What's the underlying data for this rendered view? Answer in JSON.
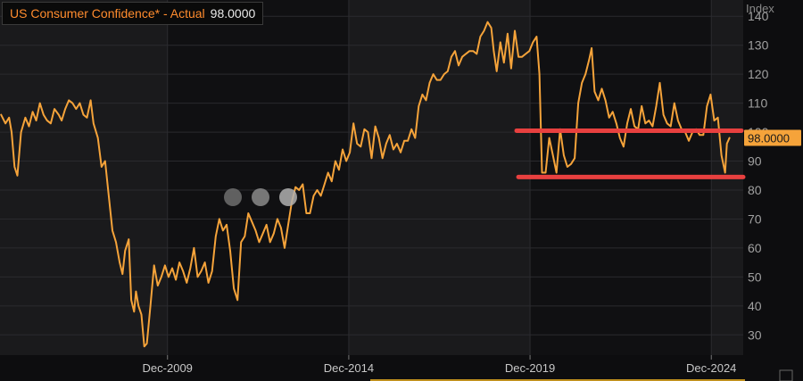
{
  "header": {
    "title": "US Consumer Confidence* - Actual",
    "value": "98.0000"
  },
  "y_axis_label": "Index",
  "colors": {
    "line": "#f5a33a",
    "annotation": "#e8403f",
    "badge": "#f5a33a",
    "shade": "#1a1a1c",
    "unshade": "#101012",
    "grid": "#2a2a2e"
  },
  "chart_data": {
    "type": "line",
    "title": "US Consumer Confidence* - Actual",
    "ylabel": "Index",
    "ylim": [
      23,
      145
    ],
    "yticks": [
      30,
      40,
      50,
      60,
      70,
      80,
      90,
      100,
      110,
      120,
      130,
      140
    ],
    "xlim": [
      2005.3,
      2025.8
    ],
    "xticks": [
      {
        "label": "Dec-2009",
        "x": 2009.92
      },
      {
        "label": "Dec-2014",
        "x": 2014.92
      },
      {
        "label": "Dec-2019",
        "x": 2019.92
      },
      {
        "label": "Dec-2024",
        "x": 2024.92
      }
    ],
    "last_value_label": "98.0000",
    "last_value": 98,
    "series": [
      {
        "points": [
          [
            2005.33,
            106
          ],
          [
            2005.45,
            103
          ],
          [
            2005.55,
            105
          ],
          [
            2005.62,
            100
          ],
          [
            2005.7,
            88
          ],
          [
            2005.78,
            85
          ],
          [
            2005.88,
            100
          ],
          [
            2006.0,
            105
          ],
          [
            2006.1,
            102
          ],
          [
            2006.2,
            107
          ],
          [
            2006.3,
            104
          ],
          [
            2006.4,
            110
          ],
          [
            2006.5,
            106
          ],
          [
            2006.6,
            104
          ],
          [
            2006.7,
            103
          ],
          [
            2006.8,
            108
          ],
          [
            2006.92,
            106
          ],
          [
            2007.0,
            104
          ],
          [
            2007.1,
            108
          ],
          [
            2007.2,
            111
          ],
          [
            2007.3,
            110
          ],
          [
            2007.4,
            108
          ],
          [
            2007.5,
            110
          ],
          [
            2007.6,
            106
          ],
          [
            2007.7,
            105
          ],
          [
            2007.8,
            111
          ],
          [
            2007.88,
            103
          ],
          [
            2008.0,
            98
          ],
          [
            2008.1,
            88
          ],
          [
            2008.2,
            90
          ],
          [
            2008.3,
            78
          ],
          [
            2008.4,
            66
          ],
          [
            2008.5,
            62
          ],
          [
            2008.6,
            55
          ],
          [
            2008.68,
            51
          ],
          [
            2008.75,
            59
          ],
          [
            2008.85,
            63
          ],
          [
            2008.92,
            42
          ],
          [
            2009.0,
            38
          ],
          [
            2009.05,
            45
          ],
          [
            2009.12,
            40
          ],
          [
            2009.2,
            37
          ],
          [
            2009.28,
            26
          ],
          [
            2009.35,
            27
          ],
          [
            2009.45,
            40
          ],
          [
            2009.55,
            54
          ],
          [
            2009.65,
            47
          ],
          [
            2009.75,
            50
          ],
          [
            2009.85,
            54
          ],
          [
            2009.95,
            50
          ],
          [
            2010.05,
            53
          ],
          [
            2010.15,
            49
          ],
          [
            2010.25,
            55
          ],
          [
            2010.35,
            52
          ],
          [
            2010.45,
            48
          ],
          [
            2010.55,
            53
          ],
          [
            2010.65,
            60
          ],
          [
            2010.75,
            50
          ],
          [
            2010.85,
            52
          ],
          [
            2010.95,
            55
          ],
          [
            2011.05,
            48
          ],
          [
            2011.15,
            52
          ],
          [
            2011.25,
            64
          ],
          [
            2011.35,
            70
          ],
          [
            2011.45,
            66
          ],
          [
            2011.55,
            68
          ],
          [
            2011.65,
            59
          ],
          [
            2011.75,
            46
          ],
          [
            2011.85,
            42
          ],
          [
            2011.95,
            62
          ],
          [
            2012.05,
            64
          ],
          [
            2012.15,
            72
          ],
          [
            2012.25,
            69
          ],
          [
            2012.35,
            66
          ],
          [
            2012.45,
            62
          ],
          [
            2012.55,
            65
          ],
          [
            2012.65,
            68
          ],
          [
            2012.75,
            62
          ],
          [
            2012.85,
            65
          ],
          [
            2012.95,
            70
          ],
          [
            2013.05,
            67
          ],
          [
            2013.15,
            60
          ],
          [
            2013.25,
            68
          ],
          [
            2013.35,
            76
          ],
          [
            2013.45,
            81
          ],
          [
            2013.55,
            80
          ],
          [
            2013.65,
            82
          ],
          [
            2013.75,
            72
          ],
          [
            2013.85,
            72
          ],
          [
            2013.95,
            78
          ],
          [
            2014.05,
            80
          ],
          [
            2014.15,
            78
          ],
          [
            2014.25,
            82
          ],
          [
            2014.35,
            86
          ],
          [
            2014.45,
            83
          ],
          [
            2014.55,
            90
          ],
          [
            2014.65,
            87
          ],
          [
            2014.75,
            94
          ],
          [
            2014.85,
            90
          ],
          [
            2014.95,
            93
          ],
          [
            2015.05,
            103
          ],
          [
            2015.15,
            96
          ],
          [
            2015.25,
            95
          ],
          [
            2015.35,
            101
          ],
          [
            2015.45,
            100
          ],
          [
            2015.55,
            91
          ],
          [
            2015.65,
            102
          ],
          [
            2015.75,
            98
          ],
          [
            2015.85,
            91
          ],
          [
            2015.95,
            96
          ],
          [
            2016.05,
            99
          ],
          [
            2016.15,
            94
          ],
          [
            2016.25,
            96
          ],
          [
            2016.35,
            93
          ],
          [
            2016.45,
            97
          ],
          [
            2016.55,
            97
          ],
          [
            2016.65,
            101
          ],
          [
            2016.75,
            98
          ],
          [
            2016.85,
            109
          ],
          [
            2016.95,
            113
          ],
          [
            2017.05,
            111
          ],
          [
            2017.15,
            117
          ],
          [
            2017.25,
            120
          ],
          [
            2017.35,
            118
          ],
          [
            2017.45,
            118
          ],
          [
            2017.55,
            120
          ],
          [
            2017.65,
            121
          ],
          [
            2017.75,
            126
          ],
          [
            2017.85,
            128
          ],
          [
            2017.95,
            123
          ],
          [
            2018.05,
            126
          ],
          [
            2018.15,
            127
          ],
          [
            2018.25,
            128
          ],
          [
            2018.35,
            128
          ],
          [
            2018.45,
            127
          ],
          [
            2018.55,
            133
          ],
          [
            2018.65,
            135
          ],
          [
            2018.75,
            138
          ],
          [
            2018.85,
            136
          ],
          [
            2018.92,
            128
          ],
          [
            2019.0,
            121
          ],
          [
            2019.1,
            131
          ],
          [
            2019.2,
            124
          ],
          [
            2019.3,
            134
          ],
          [
            2019.4,
            122
          ],
          [
            2019.5,
            135
          ],
          [
            2019.6,
            126
          ],
          [
            2019.7,
            126
          ],
          [
            2019.8,
            127
          ],
          [
            2019.9,
            128
          ],
          [
            2020.0,
            131
          ],
          [
            2020.1,
            133
          ],
          [
            2020.18,
            120
          ],
          [
            2020.25,
            86
          ],
          [
            2020.35,
            86
          ],
          [
            2020.45,
            98
          ],
          [
            2020.55,
            92
          ],
          [
            2020.65,
            86
          ],
          [
            2020.75,
            101
          ],
          [
            2020.85,
            92
          ],
          [
            2020.95,
            88
          ],
          [
            2021.05,
            89
          ],
          [
            2021.15,
            91
          ],
          [
            2021.25,
            110
          ],
          [
            2021.35,
            117
          ],
          [
            2021.45,
            120
          ],
          [
            2021.55,
            125
          ],
          [
            2021.62,
            129
          ],
          [
            2021.7,
            114
          ],
          [
            2021.8,
            111
          ],
          [
            2021.9,
            115
          ],
          [
            2022.0,
            111
          ],
          [
            2022.1,
            105
          ],
          [
            2022.2,
            107
          ],
          [
            2022.3,
            103
          ],
          [
            2022.4,
            98
          ],
          [
            2022.5,
            95
          ],
          [
            2022.6,
            103
          ],
          [
            2022.7,
            108
          ],
          [
            2022.8,
            102
          ],
          [
            2022.9,
            101
          ],
          [
            2023.0,
            109
          ],
          [
            2023.1,
            103
          ],
          [
            2023.2,
            104
          ],
          [
            2023.3,
            102
          ],
          [
            2023.4,
            109
          ],
          [
            2023.5,
            117
          ],
          [
            2023.6,
            106
          ],
          [
            2023.7,
            103
          ],
          [
            2023.8,
            102
          ],
          [
            2023.9,
            110
          ],
          [
            2024.0,
            104
          ],
          [
            2024.1,
            101
          ],
          [
            2024.2,
            100
          ],
          [
            2024.3,
            97
          ],
          [
            2024.4,
            100
          ],
          [
            2024.5,
            101
          ],
          [
            2024.6,
            99
          ],
          [
            2024.7,
            99
          ],
          [
            2024.8,
            109
          ],
          [
            2024.9,
            113
          ],
          [
            2025.0,
            104
          ],
          [
            2025.1,
            105
          ],
          [
            2025.2,
            92
          ],
          [
            2025.3,
            86
          ],
          [
            2025.35,
            96
          ],
          [
            2025.42,
            98
          ]
        ]
      }
    ],
    "annotations": [
      {
        "type": "hline",
        "y": 100.5,
        "x_from": 2019.55,
        "x_to": 2025.75
      },
      {
        "type": "hline",
        "y": 84.5,
        "x_from": 2019.6,
        "x_to": 2025.8
      }
    ]
  }
}
